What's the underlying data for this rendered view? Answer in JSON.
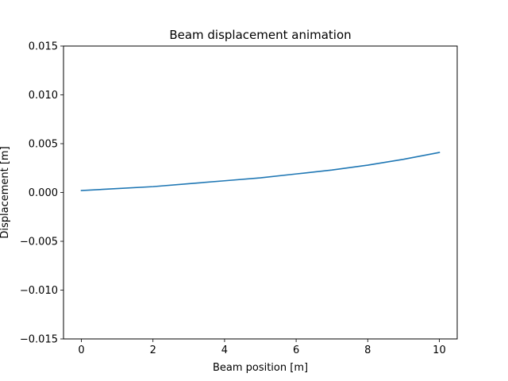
{
  "chart_data": {
    "type": "line",
    "title": "Beam displacement animation",
    "xlabel": "Beam position [m]",
    "ylabel": "Displacement [m]",
    "xlim": [
      -0.5,
      10.5
    ],
    "ylim": [
      -0.015,
      0.015
    ],
    "x_ticks": [
      0,
      2,
      4,
      6,
      8,
      10
    ],
    "x_tick_labels": [
      "0",
      "2",
      "4",
      "6",
      "8",
      "10"
    ],
    "y_ticks": [
      -0.015,
      -0.01,
      -0.005,
      0.0,
      0.005,
      0.01,
      0.015
    ],
    "y_tick_labels": [
      "−0.015",
      "−0.010",
      "−0.005",
      "0.000",
      "0.005",
      "0.010",
      "0.015"
    ],
    "grid": false,
    "series": [
      {
        "color": "#1f77b4",
        "x": [
          0,
          1,
          2,
          3,
          4,
          5,
          6,
          7,
          8,
          9,
          10
        ],
        "y": [
          0.0002,
          0.0004,
          0.0006,
          0.0009,
          0.0012,
          0.0015,
          0.0019,
          0.0023,
          0.0028,
          0.0034,
          0.0041
        ]
      }
    ]
  }
}
